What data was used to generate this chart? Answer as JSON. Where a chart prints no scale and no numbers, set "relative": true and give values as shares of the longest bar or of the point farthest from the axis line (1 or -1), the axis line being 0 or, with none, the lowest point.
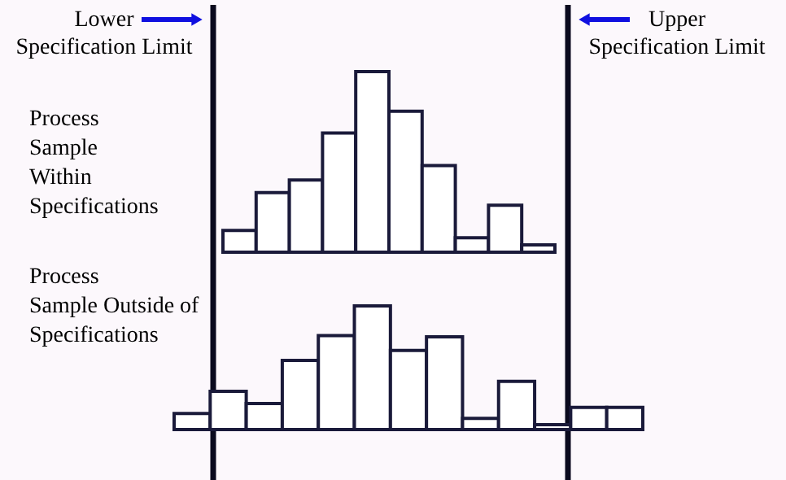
{
  "chart_data": [
    {
      "type": "bar",
      "relative": true,
      "categories": [
        null,
        null,
        null,
        null,
        null,
        null,
        null,
        null,
        null,
        null
      ],
      "values": [
        0.12,
        0.33,
        0.4,
        0.66,
        1,
        0.78,
        0.48,
        0.08,
        0.26,
        0.04
      ],
      "color": "#ffffff",
      "annotations": [
        "Lower\nSpecification Limit",
        "Upper\nSpecification Limit",
        "Process\nSample\nWithin\nSpecifications"
      ]
    },
    {
      "type": "bar",
      "relative": true,
      "categories": [
        null,
        null,
        null,
        null,
        null,
        null,
        null,
        null,
        null,
        null,
        null,
        null,
        null
      ],
      "values": [
        0.13,
        0.31,
        0.21,
        0.56,
        0.76,
        1,
        0.64,
        0.75,
        0.09,
        0.39,
        0.04,
        0.18,
        0.18
      ],
      "color": "#ffffff",
      "annotations": [
        "Process\nSample Outside of\nSpecifications"
      ]
    }
  ]
}
